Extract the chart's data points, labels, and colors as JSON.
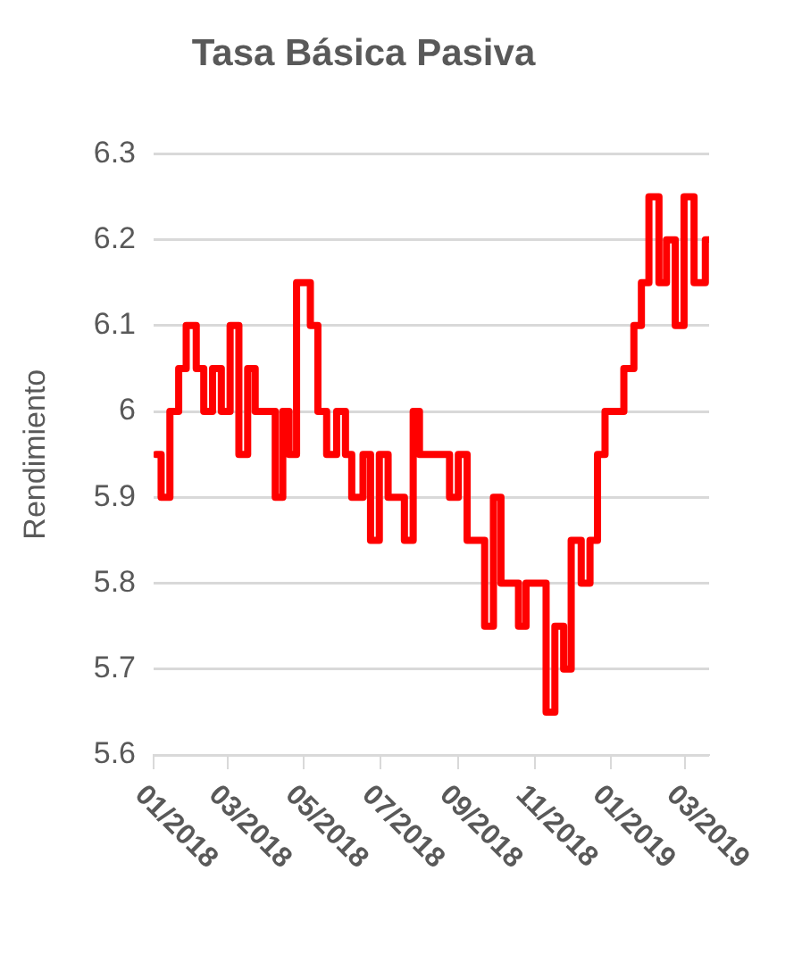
{
  "chart_data": {
    "type": "step",
    "title": "Tasa Básica Pasiva",
    "ylabel": "Rendimiento",
    "x": [
      "2018-01-03",
      "2018-01-07",
      "2018-01-14",
      "2018-01-21",
      "2018-01-27",
      "2018-02-04",
      "2018-02-10",
      "2018-02-17",
      "2018-02-24",
      "2018-03-03",
      "2018-03-10",
      "2018-03-17",
      "2018-03-23",
      "2018-04-08",
      "2018-04-14",
      "2018-04-19",
      "2018-04-25",
      "2018-05-06",
      "2018-05-12",
      "2018-05-19",
      "2018-05-27",
      "2018-06-03",
      "2018-06-08",
      "2018-06-17",
      "2018-06-23",
      "2018-06-30",
      "2018-07-07",
      "2018-07-20",
      "2018-07-27",
      "2018-08-01",
      "2018-08-25",
      "2018-09-01",
      "2018-09-08",
      "2018-09-22",
      "2018-09-29",
      "2018-10-05",
      "2018-10-19",
      "2018-10-25",
      "2018-11-10",
      "2018-11-17",
      "2018-11-24",
      "2018-11-30",
      "2018-12-08",
      "2018-12-15",
      "2018-12-21",
      "2018-12-27",
      "2019-01-11",
      "2019-01-19",
      "2019-01-25",
      "2019-01-31",
      "2019-02-08",
      "2019-02-14",
      "2019-02-21",
      "2019-02-28",
      "2019-03-08",
      "2019-03-17",
      "2019-03-19"
    ],
    "series": [
      {
        "color": "#ff0000",
        "values": [
          5.95,
          5.9,
          6.0,
          6.05,
          6.1,
          6.05,
          6.0,
          6.05,
          6.0,
          6.1,
          5.95,
          6.05,
          6.0,
          5.9,
          6.0,
          5.95,
          6.15,
          6.1,
          6.0,
          5.95,
          6.0,
          5.95,
          5.9,
          5.95,
          5.85,
          5.95,
          5.9,
          5.85,
          6.0,
          5.95,
          5.9,
          5.95,
          5.85,
          5.75,
          5.9,
          5.8,
          5.75,
          5.8,
          5.65,
          5.75,
          5.7,
          5.85,
          5.8,
          5.85,
          5.95,
          6.0,
          6.05,
          6.1,
          6.15,
          6.25,
          6.15,
          6.2,
          6.1,
          6.25,
          6.15,
          6.2,
          6.2
        ]
      }
    ],
    "xlim": [
      "2018-01-01",
      "2019-03-20"
    ],
    "xticks": [
      {
        "value": "2018-01-01",
        "label": "01/2018"
      },
      {
        "value": "2018-03-01",
        "label": "03/2018"
      },
      {
        "value": "2018-05-01",
        "label": "05/2018"
      },
      {
        "value": "2018-07-01",
        "label": "07/2018"
      },
      {
        "value": "2018-09-01",
        "label": "09/2018"
      },
      {
        "value": "2018-11-01",
        "label": "11/2018"
      },
      {
        "value": "2019-01-01",
        "label": "01/2019"
      },
      {
        "value": "2019-03-01",
        "label": "03/2019"
      }
    ],
    "ylim": [
      5.6,
      6.3
    ],
    "yticks": [
      5.6,
      5.7,
      5.8,
      5.9,
      6,
      6.1,
      6.2,
      6.3
    ],
    "grid": "y",
    "legend": false,
    "marker": "none",
    "line_style": "solid"
  }
}
